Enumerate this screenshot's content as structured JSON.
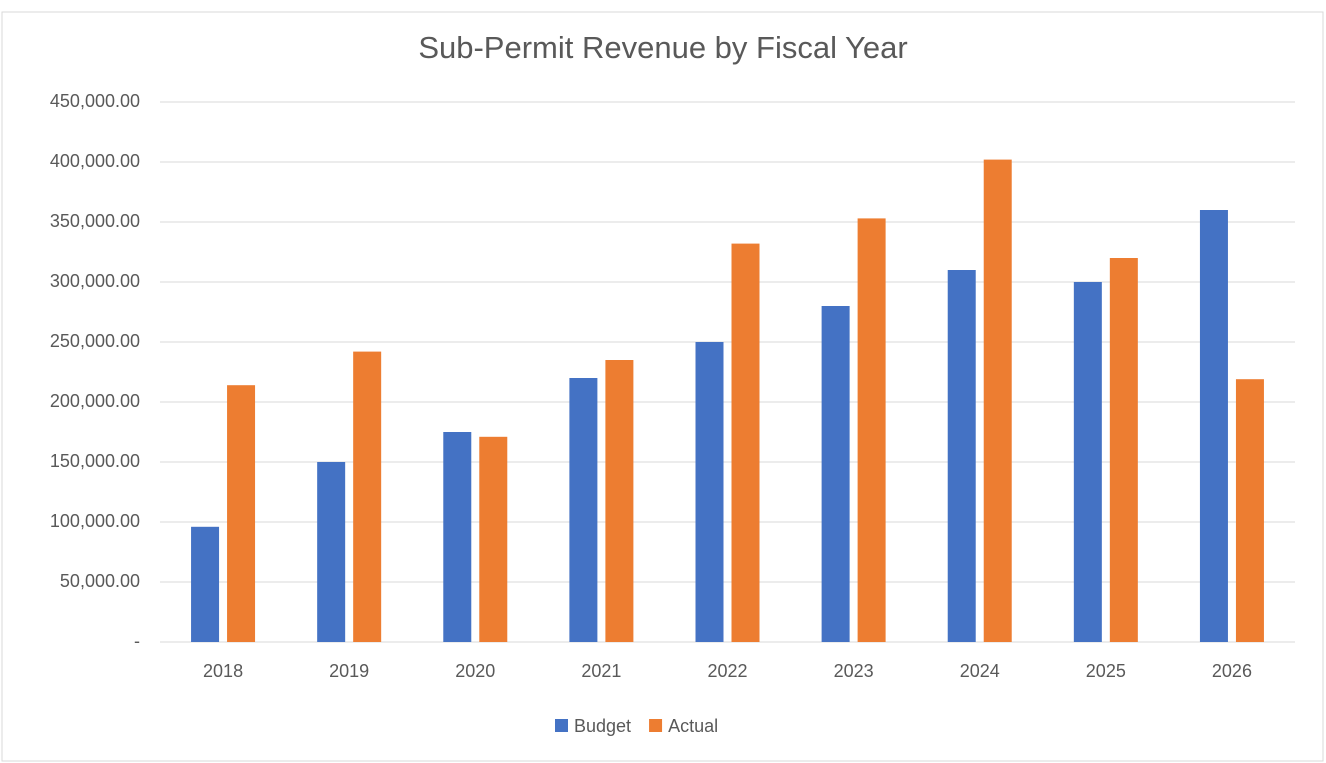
{
  "chart_data": {
    "type": "bar",
    "title": "Sub-Permit Revenue by Fiscal Year",
    "categories": [
      "2018",
      "2019",
      "2020",
      "2021",
      "2022",
      "2023",
      "2024",
      "2025",
      "2026"
    ],
    "series": [
      {
        "name": "Budget",
        "color": "#4472c4",
        "values": [
          96000,
          150000,
          175000,
          220000,
          250000,
          280000,
          310000,
          300000,
          360000
        ]
      },
      {
        "name": "Actual",
        "color": "#ed7d31",
        "values": [
          214000,
          242000,
          171000,
          235000,
          332000,
          353000,
          402000,
          320000,
          219000
        ]
      }
    ],
    "ylim": [
      0,
      450000
    ],
    "yticks": [
      {
        "value": 0,
        "label": "-"
      },
      {
        "value": 50000,
        "label": "50,000.00"
      },
      {
        "value": 100000,
        "label": "100,000.00"
      },
      {
        "value": 150000,
        "label": "150,000.00"
      },
      {
        "value": 200000,
        "label": "200,000.00"
      },
      {
        "value": 250000,
        "label": "250,000.00"
      },
      {
        "value": 300000,
        "label": "300,000.00"
      },
      {
        "value": 350000,
        "label": "350,000.00"
      },
      {
        "value": 400000,
        "label": "400,000.00"
      },
      {
        "value": 450000,
        "label": "450,000.00"
      }
    ],
    "grid": true,
    "legend": "bottom"
  }
}
